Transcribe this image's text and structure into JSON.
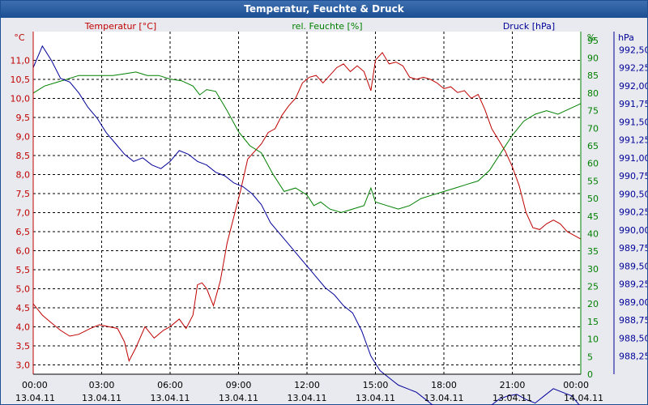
{
  "window": {
    "title": "Temperatur, Feuchte & Druck"
  },
  "chart_data": {
    "type": "line",
    "title": "Temperatur, Feuchte & Druck",
    "x": {
      "labels": [
        {
          "time": "00:00",
          "date": "13.04.11"
        },
        {
          "time": "03:00",
          "date": "13.04.11"
        },
        {
          "time": "06:00",
          "date": "13.04.11"
        },
        {
          "time": "09:00",
          "date": "13.04.11"
        },
        {
          "time": "12:00",
          "date": "13.04.11"
        },
        {
          "time": "15:00",
          "date": "13.04.11"
        },
        {
          "time": "18:00",
          "date": "13.04.11"
        },
        {
          "time": "21:00",
          "date": "13.04.11"
        },
        {
          "time": "00:00",
          "date": "14.04.11"
        }
      ],
      "range_hours": [
        0,
        24
      ]
    },
    "axes": {
      "temperature": {
        "label": "Temperatur [°C]",
        "unit": "°C",
        "color": "#c00000",
        "range": [
          2.75,
          11.75
        ],
        "ticks": [
          "11,0",
          "10,5",
          "10,0",
          "9,5",
          "9,0",
          "8,5",
          "8,0",
          "7,5",
          "7,0",
          "6,5",
          "6,0",
          "5,5",
          "5,0",
          "4,5",
          "4,0",
          "3,5",
          "3,0"
        ]
      },
      "humidity": {
        "label": "rel. Feuchte [%]",
        "unit": "%",
        "color": "#008000",
        "range": [
          0,
          97.5
        ],
        "ticks": [
          "95",
          "90",
          "85",
          "80",
          "75",
          "70",
          "65",
          "60",
          "55",
          "50",
          "45",
          "40",
          "35",
          "30",
          "25",
          "20",
          "15",
          "10",
          "5",
          "0"
        ]
      },
      "pressure": {
        "label": "Druck [hPa]",
        "unit": "hPa",
        "color": "#000099",
        "range": [
          988.0,
          992.75
        ],
        "ticks": [
          "992,50",
          "992,25",
          "992,00",
          "991,75",
          "991,50",
          "991,25",
          "991,00",
          "990,75",
          "990,50",
          "990,25",
          "990,00",
          "989,75",
          "989,50",
          "989,25",
          "989,00",
          "988,75",
          "988,50",
          "988,25"
        ]
      }
    },
    "grid": true,
    "series": [
      {
        "name": "Temperatur [°C]",
        "axis": "temperature",
        "points": [
          [
            0,
            4.6
          ],
          [
            0.4,
            4.3
          ],
          [
            0.8,
            4.1
          ],
          [
            1.2,
            3.9
          ],
          [
            1.6,
            3.75
          ],
          [
            2.0,
            3.8
          ],
          [
            2.5,
            3.95
          ],
          [
            2.9,
            4.05
          ],
          [
            3.3,
            4.0
          ],
          [
            3.7,
            3.95
          ],
          [
            4.0,
            3.6
          ],
          [
            4.2,
            3.1
          ],
          [
            4.5,
            3.45
          ],
          [
            4.9,
            4.0
          ],
          [
            5.3,
            3.7
          ],
          [
            5.7,
            3.9
          ],
          [
            6.0,
            4.0
          ],
          [
            6.4,
            4.2
          ],
          [
            6.7,
            3.95
          ],
          [
            7.0,
            4.3
          ],
          [
            7.2,
            5.1
          ],
          [
            7.4,
            5.15
          ],
          [
            7.6,
            5.0
          ],
          [
            7.9,
            4.55
          ],
          [
            8.2,
            5.2
          ],
          [
            8.5,
            6.2
          ],
          [
            8.8,
            6.9
          ],
          [
            9.1,
            7.6
          ],
          [
            9.4,
            8.4
          ],
          [
            9.7,
            8.6
          ],
          [
            10.0,
            8.8
          ],
          [
            10.3,
            9.1
          ],
          [
            10.6,
            9.2
          ],
          [
            10.9,
            9.55
          ],
          [
            11.2,
            9.8
          ],
          [
            11.5,
            10.0
          ],
          [
            11.8,
            10.4
          ],
          [
            12.1,
            10.55
          ],
          [
            12.4,
            10.6
          ],
          [
            12.7,
            10.4
          ],
          [
            13.0,
            10.6
          ],
          [
            13.3,
            10.8
          ],
          [
            13.6,
            10.9
          ],
          [
            13.9,
            10.7
          ],
          [
            14.2,
            10.85
          ],
          [
            14.5,
            10.7
          ],
          [
            14.8,
            10.2
          ],
          [
            15.0,
            11.0
          ],
          [
            15.3,
            11.2
          ],
          [
            15.6,
            10.9
          ],
          [
            15.9,
            10.95
          ],
          [
            16.2,
            10.85
          ],
          [
            16.5,
            10.55
          ],
          [
            16.8,
            10.5
          ],
          [
            17.1,
            10.55
          ],
          [
            17.4,
            10.5
          ],
          [
            17.7,
            10.4
          ],
          [
            18.0,
            10.25
          ],
          [
            18.3,
            10.3
          ],
          [
            18.6,
            10.15
          ],
          [
            18.9,
            10.2
          ],
          [
            19.2,
            10.0
          ],
          [
            19.5,
            10.1
          ],
          [
            19.8,
            9.7
          ],
          [
            20.1,
            9.2
          ],
          [
            20.4,
            8.9
          ],
          [
            20.7,
            8.6
          ],
          [
            21.0,
            8.2
          ],
          [
            21.3,
            7.7
          ],
          [
            21.6,
            7.0
          ],
          [
            21.9,
            6.6
          ],
          [
            22.2,
            6.55
          ],
          [
            22.5,
            6.7
          ],
          [
            22.8,
            6.8
          ],
          [
            23.1,
            6.7
          ],
          [
            23.4,
            6.5
          ],
          [
            23.7,
            6.4
          ],
          [
            24,
            6.3
          ]
        ]
      },
      {
        "name": "rel. Feuchte [%]",
        "axis": "humidity",
        "points": [
          [
            0,
            80
          ],
          [
            0.5,
            82
          ],
          [
            1.0,
            83
          ],
          [
            1.5,
            84
          ],
          [
            2.0,
            85
          ],
          [
            2.5,
            85
          ],
          [
            3.0,
            85
          ],
          [
            3.5,
            85
          ],
          [
            4.0,
            85.5
          ],
          [
            4.5,
            86
          ],
          [
            5.0,
            85
          ],
          [
            5.5,
            85
          ],
          [
            6.0,
            84
          ],
          [
            6.5,
            83.5
          ],
          [
            7.0,
            82
          ],
          [
            7.3,
            79.5
          ],
          [
            7.6,
            81
          ],
          [
            8.0,
            80.5
          ],
          [
            8.5,
            75
          ],
          [
            9.0,
            69
          ],
          [
            9.5,
            65
          ],
          [
            10.0,
            63
          ],
          [
            10.5,
            57
          ],
          [
            11.0,
            52
          ],
          [
            11.5,
            53
          ],
          [
            12.0,
            51
          ],
          [
            12.3,
            48
          ],
          [
            12.6,
            49
          ],
          [
            13.0,
            47
          ],
          [
            13.5,
            46
          ],
          [
            14.0,
            47
          ],
          [
            14.5,
            48
          ],
          [
            14.8,
            53
          ],
          [
            15.0,
            49
          ],
          [
            15.5,
            48
          ],
          [
            16.0,
            47
          ],
          [
            16.5,
            48
          ],
          [
            17.0,
            50
          ],
          [
            17.5,
            51
          ],
          [
            18.0,
            52
          ],
          [
            18.5,
            53
          ],
          [
            19.0,
            54
          ],
          [
            19.5,
            55
          ],
          [
            20.0,
            58
          ],
          [
            20.5,
            63
          ],
          [
            21.0,
            68
          ],
          [
            21.5,
            72
          ],
          [
            22.0,
            74
          ],
          [
            22.5,
            75
          ],
          [
            23.0,
            74
          ],
          [
            23.5,
            75.5
          ],
          [
            24,
            77
          ]
        ]
      },
      {
        "name": "Druck [hPa]",
        "axis": "pressure",
        "points": [
          [
            0,
            992.25
          ],
          [
            0.4,
            992.55
          ],
          [
            0.8,
            992.35
          ],
          [
            1.2,
            992.1
          ],
          [
            1.6,
            992.05
          ],
          [
            2.0,
            991.9
          ],
          [
            2.4,
            991.7
          ],
          [
            2.8,
            991.55
          ],
          [
            3.2,
            991.35
          ],
          [
            3.6,
            991.2
          ],
          [
            4.0,
            991.05
          ],
          [
            4.4,
            990.95
          ],
          [
            4.8,
            991.0
          ],
          [
            5.2,
            990.9
          ],
          [
            5.6,
            990.85
          ],
          [
            6.0,
            990.95
          ],
          [
            6.4,
            991.1
          ],
          [
            6.8,
            991.05
          ],
          [
            7.2,
            990.95
          ],
          [
            7.6,
            990.9
          ],
          [
            8.0,
            990.8
          ],
          [
            8.4,
            990.75
          ],
          [
            8.8,
            990.65
          ],
          [
            9.2,
            990.6
          ],
          [
            9.6,
            990.5
          ],
          [
            10.0,
            990.35
          ],
          [
            10.4,
            990.1
          ],
          [
            10.8,
            989.95
          ],
          [
            11.2,
            989.8
          ],
          [
            11.6,
            989.65
          ],
          [
            12.0,
            989.5
          ],
          [
            12.4,
            989.35
          ],
          [
            12.8,
            989.2
          ],
          [
            13.2,
            989.1
          ],
          [
            13.6,
            988.95
          ],
          [
            14.0,
            988.85
          ],
          [
            14.4,
            988.6
          ],
          [
            14.8,
            988.25
          ],
          [
            15.2,
            988.05
          ],
          [
            15.6,
            987.95
          ],
          [
            16.0,
            987.85
          ],
          [
            16.4,
            987.8
          ],
          [
            16.8,
            987.75
          ],
          [
            17.2,
            987.65
          ],
          [
            17.6,
            987.55
          ],
          [
            18.0,
            987.45
          ],
          [
            18.4,
            987.4
          ],
          [
            18.8,
            987.4
          ],
          [
            19.2,
            987.45
          ],
          [
            19.6,
            987.5
          ],
          [
            20.0,
            987.55
          ],
          [
            20.4,
            987.65
          ],
          [
            20.8,
            987.7
          ],
          [
            21.2,
            987.72
          ],
          [
            21.6,
            987.65
          ],
          [
            22.0,
            987.6
          ],
          [
            22.4,
            987.7
          ],
          [
            22.8,
            987.8
          ],
          [
            23.2,
            987.75
          ],
          [
            23.6,
            987.7
          ],
          [
            24,
            987.55
          ]
        ]
      }
    ]
  }
}
